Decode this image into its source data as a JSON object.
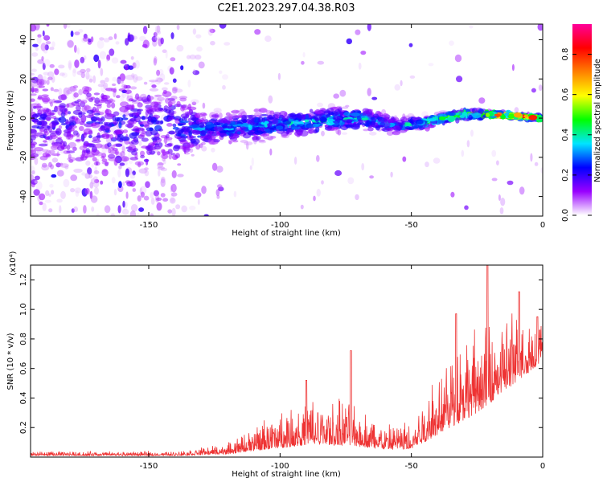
{
  "title": "C2E1.2023.297.04.38.R03",
  "chart_data": [
    {
      "type": "heatmap",
      "xlabel": "Height of straight line (km)",
      "ylabel": "Frequency (Hz)",
      "xlim": [
        -195,
        0
      ],
      "ylim": [
        -50,
        48
      ],
      "x_ticks": [
        -150,
        -100,
        -50,
        0
      ],
      "y_ticks": [
        -40,
        -20,
        0,
        20,
        40
      ],
      "colorbar": {
        "label": "Normalized spectral amplitude",
        "ticks": [
          0.0,
          0.2,
          0.4,
          0.6,
          0.8
        ],
        "range": [
          0,
          0.95
        ],
        "colors": [
          "#ffffff",
          "#9900ff",
          "#0000ff",
          "#00e5ff",
          "#00ff00",
          "#ffff00",
          "#ff8000",
          "#ff0000",
          "#ff0099"
        ]
      },
      "ridge": [
        {
          "x": -195,
          "freq": -3,
          "spread": 40,
          "amp": 0.2
        },
        {
          "x": -140,
          "freq": -5,
          "spread": 30,
          "amp": 0.25
        },
        {
          "x": -130,
          "freq": -6,
          "spread": 12,
          "amp": 0.3
        },
        {
          "x": -100,
          "freq": -3,
          "spread": 10,
          "amp": 0.35
        },
        {
          "x": -70,
          "freq": 0,
          "spread": 8,
          "amp": 0.38
        },
        {
          "x": -55,
          "freq": -4,
          "spread": 6,
          "amp": 0.3
        },
        {
          "x": -45,
          "freq": -2,
          "spread": 4,
          "amp": 0.45
        },
        {
          "x": -30,
          "freq": 2,
          "spread": 4,
          "amp": 0.55
        },
        {
          "x": -20,
          "freq": 2,
          "spread": 2,
          "amp": 0.85
        },
        {
          "x": -10,
          "freq": 1,
          "spread": 2,
          "amp": 0.9
        },
        {
          "x": 0,
          "freq": 0,
          "spread": 2,
          "amp": 0.6
        }
      ]
    },
    {
      "type": "line",
      "xlabel": "Height of straight line (km)",
      "ylabel": "SNR (10 * v/v)",
      "yscale_label": "(x10⁴)",
      "xlim": [
        -195,
        0
      ],
      "ylim": [
        0,
        1.3
      ],
      "x_ticks": [
        -150,
        -100,
        -50,
        0
      ],
      "y_ticks": [
        0.2,
        0.4,
        0.6,
        0.8,
        1.0,
        1.2
      ],
      "color": "#ee3333",
      "envelope": [
        {
          "x": -195,
          "base": 0.01,
          "amp": 0.02
        },
        {
          "x": -140,
          "base": 0.01,
          "amp": 0.02
        },
        {
          "x": -120,
          "base": 0.02,
          "amp": 0.05
        },
        {
          "x": -105,
          "base": 0.05,
          "amp": 0.15
        },
        {
          "x": -90,
          "base": 0.08,
          "amp": 0.22
        },
        {
          "x": -75,
          "base": 0.08,
          "amp": 0.22
        },
        {
          "x": -60,
          "base": 0.05,
          "amp": 0.12
        },
        {
          "x": -50,
          "base": 0.05,
          "amp": 0.15
        },
        {
          "x": -40,
          "base": 0.15,
          "amp": 0.35
        },
        {
          "x": -25,
          "base": 0.3,
          "amp": 0.4
        },
        {
          "x": -10,
          "base": 0.5,
          "amp": 0.35
        },
        {
          "x": 0,
          "base": 0.65,
          "amp": 0.2
        }
      ],
      "spikes": [
        {
          "x": -90,
          "y": 0.52
        },
        {
          "x": -73,
          "y": 0.72
        },
        {
          "x": -33,
          "y": 0.97
        },
        {
          "x": -21,
          "y": 1.3
        },
        {
          "x": -9,
          "y": 1.12
        },
        {
          "x": -2,
          "y": 0.95
        }
      ]
    }
  ]
}
